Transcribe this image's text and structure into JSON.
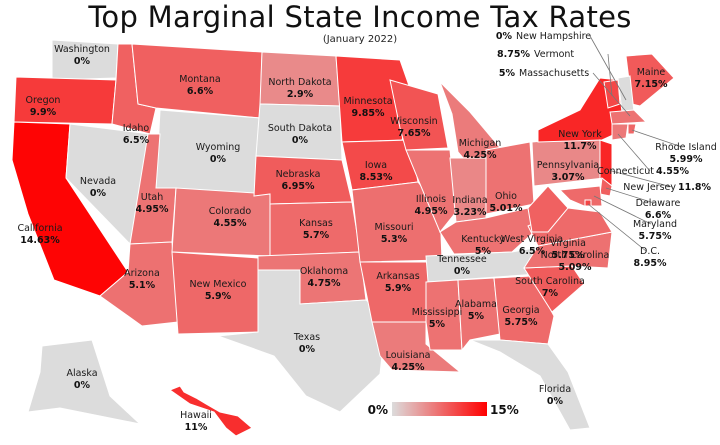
{
  "title": "Top Marginal State Income Tax Rates",
  "subtitle": "(January 2022)",
  "legend": {
    "min_label": "0%",
    "max_label": "15%",
    "min_color": "#dcdcdc",
    "max_color": "#ff0000"
  },
  "states": [
    {
      "id": "WA",
      "name": "Washington",
      "rate": "0%"
    },
    {
      "id": "OR",
      "name": "Oregon",
      "rate": "9.9%"
    },
    {
      "id": "CA",
      "name": "California",
      "rate": "14.63%"
    },
    {
      "id": "NV",
      "name": "Nevada",
      "rate": "0%"
    },
    {
      "id": "ID",
      "name": "Idaho",
      "rate": "6.5%"
    },
    {
      "id": "MT",
      "name": "Montana",
      "rate": "6.6%"
    },
    {
      "id": "WY",
      "name": "Wyoming",
      "rate": "0%"
    },
    {
      "id": "UT",
      "name": "Utah",
      "rate": "4.95%"
    },
    {
      "id": "AZ",
      "name": "Arizona",
      "rate": "5.1%"
    },
    {
      "id": "CO",
      "name": "Colorado",
      "rate": "4.55%"
    },
    {
      "id": "NM",
      "name": "New Mexico",
      "rate": "5.9%"
    },
    {
      "id": "ND",
      "name": "North Dakota",
      "rate": "2.9%"
    },
    {
      "id": "SD",
      "name": "South Dakota",
      "rate": "0%"
    },
    {
      "id": "NE",
      "name": "Nebraska",
      "rate": "6.95%"
    },
    {
      "id": "KS",
      "name": "Kansas",
      "rate": "5.7%"
    },
    {
      "id": "OK",
      "name": "Oklahoma",
      "rate": "4.75%"
    },
    {
      "id": "TX",
      "name": "Texas",
      "rate": "0%"
    },
    {
      "id": "MN",
      "name": "Minnesota",
      "rate": "9.85%"
    },
    {
      "id": "IA",
      "name": "Iowa",
      "rate": "8.53%"
    },
    {
      "id": "MO",
      "name": "Missouri",
      "rate": "5.3%"
    },
    {
      "id": "AR",
      "name": "Arkansas",
      "rate": "5.9%"
    },
    {
      "id": "LA",
      "name": "Louisiana",
      "rate": "4.25%"
    },
    {
      "id": "WI",
      "name": "Wisconsin",
      "rate": "7.65%"
    },
    {
      "id": "IL",
      "name": "Illinois",
      "rate": "4.95%"
    },
    {
      "id": "MI",
      "name": "Michigan",
      "rate": "4.25%"
    },
    {
      "id": "IN",
      "name": "Indiana",
      "rate": "3.23%"
    },
    {
      "id": "OH",
      "name": "Ohio",
      "rate": "5.01%"
    },
    {
      "id": "KY",
      "name": "Kentucky",
      "rate": "5%"
    },
    {
      "id": "TN",
      "name": "Tennessee",
      "rate": "0%"
    },
    {
      "id": "MS",
      "name": "Mississippi",
      "rate": "5%"
    },
    {
      "id": "AL",
      "name": "Alabama",
      "rate": "5%"
    },
    {
      "id": "GA",
      "name": "Georgia",
      "rate": "5.75%"
    },
    {
      "id": "FL",
      "name": "Florida",
      "rate": "0%"
    },
    {
      "id": "SC",
      "name": "South Carolina",
      "rate": "7%"
    },
    {
      "id": "NC",
      "name": "North Carolina",
      "rate": "5.09%"
    },
    {
      "id": "VA",
      "name": "Virginia",
      "rate": "5.75%"
    },
    {
      "id": "WV",
      "name": "West Virginia",
      "rate": "6.5%"
    },
    {
      "id": "PA",
      "name": "Pennsylvania",
      "rate": "3.07%"
    },
    {
      "id": "NY",
      "name": "New York",
      "rate": "11.7%"
    },
    {
      "id": "ME",
      "name": "Maine",
      "rate": "7.15%"
    },
    {
      "id": "AK",
      "name": "Alaska",
      "rate": "0%"
    },
    {
      "id": "HI",
      "name": "Hawaii",
      "rate": "11%"
    },
    {
      "id": "NH",
      "name": "New Hampshire",
      "rate": "0%"
    },
    {
      "id": "VT",
      "name": "Vermont",
      "rate": "8.75%"
    },
    {
      "id": "MA",
      "name": "Massachusetts",
      "rate": "5%"
    },
    {
      "id": "RI",
      "name": "Rhode Island",
      "rate": "5.99%"
    },
    {
      "id": "CT",
      "name": "Connecticut",
      "rate": "4.55%"
    },
    {
      "id": "NJ",
      "name": "New Jersey",
      "rate": "11.8%"
    },
    {
      "id": "DE",
      "name": "Delaware",
      "rate": "6.6%"
    },
    {
      "id": "MD",
      "name": "Maryland",
      "rate": "5.75%"
    },
    {
      "id": "DC",
      "name": "D.C.",
      "rate": "8.95%"
    }
  ]
}
